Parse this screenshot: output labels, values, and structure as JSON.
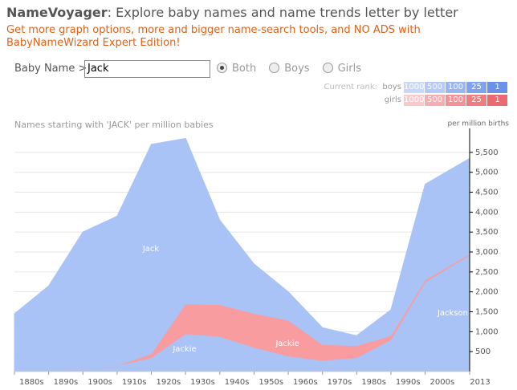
{
  "header": {
    "title": "NameVoyager",
    "subtitle": ": Explore baby names and name trends letter by letter",
    "promo": "Get more graph options, more and bigger name-search tools, and NO ADS with BabyNameWizard Expert Edition!"
  },
  "search": {
    "label": "Baby Name >",
    "value": "Jack",
    "options": [
      "Both",
      "Boys",
      "Girls"
    ],
    "selected": 0
  },
  "rank_legend": {
    "label": "Current rank:",
    "rows": [
      "boys",
      "girls"
    ],
    "levels": [
      "1000",
      "500",
      "100",
      "25",
      "1"
    ]
  },
  "chart_data": {
    "type": "stacked-area",
    "title": "Names starting with 'JACK' per million babies",
    "y_label": "per million births",
    "x": [
      1880,
      1890,
      1900,
      1910,
      1920,
      1930,
      1940,
      1950,
      1960,
      1970,
      1980,
      1990,
      2000,
      2013
    ],
    "series": [
      {
        "name": "Jackson",
        "color": "#a9c3f6",
        "values": [
          80,
          80,
          80,
          100,
          100,
          100,
          80,
          60,
          40,
          30,
          150,
          700,
          2200,
          2900
        ]
      },
      {
        "name": "Jackie",
        "color": "#a9c3f6",
        "values": [
          0,
          0,
          20,
          50,
          250,
          850,
          800,
          550,
          350,
          250,
          200,
          100,
          50,
          20
        ]
      },
      {
        "name": "Jackie",
        "color": "#f89ca0",
        "values": [
          0,
          0,
          0,
          0,
          100,
          750,
          800,
          850,
          900,
          400,
          300,
          100,
          50,
          30
        ]
      },
      {
        "name": "Jack",
        "color": "#a9c3f6",
        "values": [
          1370,
          2070,
          3400,
          3750,
          5250,
          4150,
          2120,
          1240,
          710,
          420,
          250,
          650,
          2400,
          2400
        ]
      }
    ],
    "xlim": [
      1880,
      2013
    ],
    "ylim": [
      0,
      5900
    ],
    "xticks": [
      {
        "value": 1880,
        "label": "1880s"
      },
      {
        "value": 1890,
        "label": "1890s"
      },
      {
        "value": 1900,
        "label": "1900s"
      },
      {
        "value": 1910,
        "label": "1910s"
      },
      {
        "value": 1920,
        "label": "1920s"
      },
      {
        "value": 1930,
        "label": "1930s"
      },
      {
        "value": 1940,
        "label": "1940s"
      },
      {
        "value": 1950,
        "label": "1950s"
      },
      {
        "value": 1960,
        "label": "1960s"
      },
      {
        "value": 1970,
        "label": "1970s"
      },
      {
        "value": 1980,
        "label": "1980s"
      },
      {
        "value": 1990,
        "label": "1990s"
      },
      {
        "value": 2000,
        "label": "2000s"
      },
      2013
    ],
    "yticks": [
      500,
      {
        "value": 1000,
        "label": "1,000"
      },
      {
        "value": 1500,
        "label": "1,500"
      },
      {
        "value": 2000,
        "label": "2,000"
      },
      {
        "value": 2500,
        "label": "2,500"
      },
      {
        "value": 3000,
        "label": "3,000"
      },
      {
        "value": 3500,
        "label": "3,500"
      },
      {
        "value": 4000,
        "label": "4,000"
      },
      {
        "value": 4500,
        "label": "4,500"
      },
      {
        "value": 5000,
        "label": "5,000"
      },
      {
        "value": 5500,
        "label": "5,500"
      }
    ],
    "grid": true
  }
}
